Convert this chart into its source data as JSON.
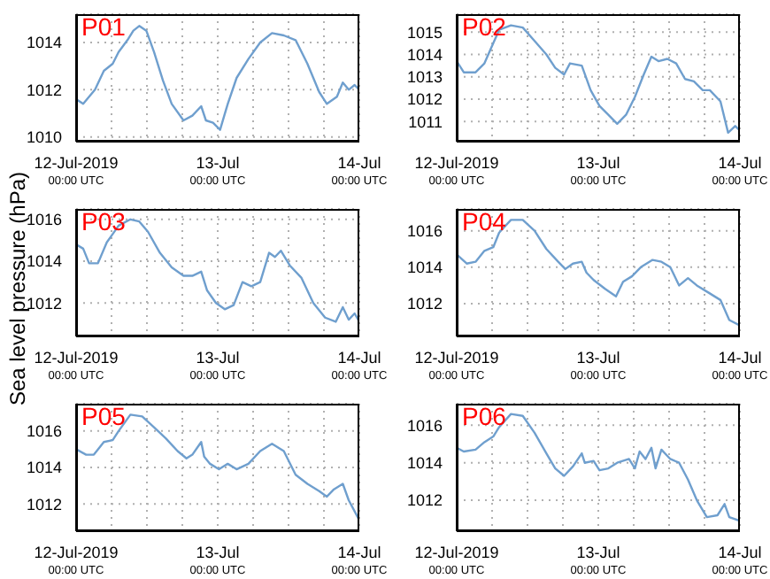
{
  "chart_data": [
    {
      "type": "line",
      "title": "P01",
      "xlim": [
        "2019-07-12",
        "2019-07-14"
      ],
      "ylim": [
        1009.8,
        1015.2
      ],
      "yticks": [
        1010,
        1012,
        1014
      ],
      "grid": true,
      "xticks": [
        {
          "value": "2019-07-12",
          "label": "12-Jul-2019\n00:00 UTC"
        },
        {
          "value": "2019-07-12T06:00",
          "label": null
        },
        {
          "value": "2019-07-12T12:00",
          "label": null
        },
        {
          "value": "2019-07-12T18:00",
          "label": null
        },
        {
          "value": "2019-07-13",
          "label": "13-Jul\n00:00 UTC"
        },
        {
          "value": "2019-07-13T06:00",
          "label": null
        },
        {
          "value": "2019-07-13T12:00",
          "label": null
        },
        {
          "value": "2019-07-13T18:00",
          "label": null
        },
        {
          "value": "2019-07-14",
          "label": "14-Jul\n00:00 UTC"
        }
      ],
      "x": [
        "2019-07-12T00:00",
        "2019-07-12T01:12",
        "2019-07-12T03:12",
        "2019-07-12T04:42",
        "2019-07-12T06:12",
        "2019-07-12T07:12",
        "2019-07-12T08:42",
        "2019-07-12T09:42",
        "2019-07-12T10:42",
        "2019-07-12T11:54",
        "2019-07-12T13:12",
        "2019-07-12T14:42",
        "2019-07-12T16:12",
        "2019-07-12T18:12",
        "2019-07-12T19:42",
        "2019-07-12T21:12",
        "2019-07-12T22:00",
        "2019-07-12T23:12",
        "2019-07-13T00:24",
        "2019-07-13T01:42",
        "2019-07-13T03:12",
        "2019-07-13T05:12",
        "2019-07-13T07:12",
        "2019-07-13T09:12",
        "2019-07-13T11:12",
        "2019-07-13T13:12",
        "2019-07-13T15:12",
        "2019-07-13T17:12",
        "2019-07-13T18:30",
        "2019-07-13T20:12",
        "2019-07-13T21:12",
        "2019-07-13T22:12",
        "2019-07-13T23:12",
        "2019-07-14T00:00"
      ],
      "series": [
        {
          "color": "#6f9fce",
          "values": [
            1011.6,
            1011.4,
            1012.0,
            1012.8,
            1013.1,
            1013.6,
            1014.1,
            1014.5,
            1014.7,
            1014.5,
            1013.6,
            1012.4,
            1011.4,
            1010.7,
            1010.9,
            1011.3,
            1010.7,
            1010.6,
            1010.3,
            1011.4,
            1012.5,
            1013.3,
            1014.0,
            1014.4,
            1014.3,
            1014.1,
            1013.1,
            1011.9,
            1011.4,
            1011.7,
            1012.3,
            1012.0,
            1012.2,
            1012.0
          ]
        }
      ]
    },
    {
      "type": "line",
      "title": "P02",
      "xlim": [
        "2019-07-12",
        "2019-07-14"
      ],
      "ylim": [
        1010.1,
        1015.8
      ],
      "yticks": [
        1011,
        1012,
        1013,
        1014,
        1015
      ],
      "grid": true,
      "xticks": [
        {
          "value": "2019-07-12",
          "label": "12-Jul-2019\n00:00 UTC"
        },
        {
          "value": "2019-07-12T06:00",
          "label": null
        },
        {
          "value": "2019-07-12T12:00",
          "label": null
        },
        {
          "value": "2019-07-12T18:00",
          "label": null
        },
        {
          "value": "2019-07-13",
          "label": "13-Jul\n00:00 UTC"
        },
        {
          "value": "2019-07-13T06:00",
          "label": null
        },
        {
          "value": "2019-07-13T12:00",
          "label": null
        },
        {
          "value": "2019-07-13T18:00",
          "label": null
        },
        {
          "value": "2019-07-14",
          "label": "14-Jul\n00:00 UTC"
        }
      ],
      "x": [
        "2019-07-12T00:00",
        "2019-07-12T01:12",
        "2019-07-12T03:12",
        "2019-07-12T04:42",
        "2019-07-12T06:12",
        "2019-07-12T07:12",
        "2019-07-12T09:12",
        "2019-07-12T11:12",
        "2019-07-12T13:12",
        "2019-07-12T15:12",
        "2019-07-12T16:42",
        "2019-07-12T18:12",
        "2019-07-12T19:12",
        "2019-07-12T21:12",
        "2019-07-12T22:42",
        "2019-07-13T00:12",
        "2019-07-13T01:42",
        "2019-07-13T03:12",
        "2019-07-13T04:42",
        "2019-07-13T06:12",
        "2019-07-13T07:42",
        "2019-07-13T09:00",
        "2019-07-13T10:12",
        "2019-07-13T11:42",
        "2019-07-13T13:12",
        "2019-07-13T14:42",
        "2019-07-13T16:12",
        "2019-07-13T17:42",
        "2019-07-13T18:54",
        "2019-07-13T20:42",
        "2019-07-13T22:00",
        "2019-07-13T23:12",
        "2019-07-14T00:00"
      ],
      "series": [
        {
          "color": "#6f9fce",
          "values": [
            1013.7,
            1013.2,
            1013.2,
            1013.6,
            1014.5,
            1015.1,
            1015.3,
            1015.2,
            1014.6,
            1014.0,
            1013.4,
            1013.1,
            1013.6,
            1013.5,
            1012.4,
            1011.7,
            1011.3,
            1010.9,
            1011.3,
            1012.1,
            1013.1,
            1013.9,
            1013.7,
            1013.8,
            1013.6,
            1012.9,
            1012.8,
            1012.4,
            1012.4,
            1011.9,
            1010.5,
            1010.8,
            1010.6
          ]
        }
      ]
    },
    {
      "type": "line",
      "title": "P03",
      "ylabel": "Sea level pressure (hPa)",
      "xlim": [
        "2019-07-12",
        "2019-07-14"
      ],
      "ylim": [
        1010.4,
        1016.5
      ],
      "yticks": [
        1012,
        1014,
        1016
      ],
      "grid": true,
      "xticks": [
        {
          "value": "2019-07-12",
          "label": "12-Jul-2019\n00:00 UTC"
        },
        {
          "value": "2019-07-12T06:00",
          "label": null
        },
        {
          "value": "2019-07-12T12:00",
          "label": null
        },
        {
          "value": "2019-07-12T18:00",
          "label": null
        },
        {
          "value": "2019-07-13",
          "label": "13-Jul\n00:00 UTC"
        },
        {
          "value": "2019-07-13T06:00",
          "label": null
        },
        {
          "value": "2019-07-13T12:00",
          "label": null
        },
        {
          "value": "2019-07-13T18:00",
          "label": null
        },
        {
          "value": "2019-07-14",
          "label": "14-Jul\n00:00 UTC"
        }
      ],
      "x": [
        "2019-07-12T00:00",
        "2019-07-12T01:12",
        "2019-07-12T02:12",
        "2019-07-12T03:42",
        "2019-07-12T05:12",
        "2019-07-12T06:12",
        "2019-07-12T07:12",
        "2019-07-12T09:12",
        "2019-07-12T10:42",
        "2019-07-12T12:12",
        "2019-07-12T14:12",
        "2019-07-12T16:12",
        "2019-07-12T18:12",
        "2019-07-12T19:42",
        "2019-07-12T21:12",
        "2019-07-12T22:12",
        "2019-07-12T23:42",
        "2019-07-13T01:12",
        "2019-07-13T02:42",
        "2019-07-13T04:12",
        "2019-07-13T05:42",
        "2019-07-13T07:12",
        "2019-07-13T08:42",
        "2019-07-13T09:42",
        "2019-07-13T10:42",
        "2019-07-13T12:12",
        "2019-07-13T14:12",
        "2019-07-13T16:12",
        "2019-07-13T18:12",
        "2019-07-13T20:00",
        "2019-07-13T21:12",
        "2019-07-13T22:12",
        "2019-07-13T23:12",
        "2019-07-14T00:00"
      ],
      "series": [
        {
          "color": "#6f9fce",
          "values": [
            1014.8,
            1014.6,
            1013.9,
            1013.9,
            1014.9,
            1015.3,
            1015.7,
            1016.0,
            1015.9,
            1015.4,
            1014.4,
            1013.7,
            1013.3,
            1013.3,
            1013.5,
            1012.6,
            1012.0,
            1011.7,
            1011.9,
            1013.0,
            1012.8,
            1013.0,
            1014.4,
            1014.2,
            1014.5,
            1013.8,
            1013.2,
            1012.0,
            1011.3,
            1011.1,
            1011.8,
            1011.2,
            1011.5,
            1011.1
          ]
        }
      ]
    },
    {
      "type": "line",
      "title": "P04",
      "xlim": [
        "2019-07-12",
        "2019-07-14"
      ],
      "ylim": [
        1010.2,
        1017.2
      ],
      "yticks": [
        1012,
        1014,
        1016
      ],
      "grid": true,
      "xticks": [
        {
          "value": "2019-07-12",
          "label": "12-Jul-2019\n00:00 UTC"
        },
        {
          "value": "2019-07-12T06:00",
          "label": null
        },
        {
          "value": "2019-07-12T12:00",
          "label": null
        },
        {
          "value": "2019-07-12T18:00",
          "label": null
        },
        {
          "value": "2019-07-13",
          "label": "13-Jul\n00:00 UTC"
        },
        {
          "value": "2019-07-13T06:00",
          "label": null
        },
        {
          "value": "2019-07-13T12:00",
          "label": null
        },
        {
          "value": "2019-07-13T18:00",
          "label": null
        },
        {
          "value": "2019-07-14",
          "label": "14-Jul\n00:00 UTC"
        }
      ],
      "x": [
        "2019-07-12T00:00",
        "2019-07-12T01:42",
        "2019-07-12T03:12",
        "2019-07-12T04:42",
        "2019-07-12T06:12",
        "2019-07-12T07:12",
        "2019-07-12T09:12",
        "2019-07-12T11:12",
        "2019-07-12T13:12",
        "2019-07-12T15:12",
        "2019-07-12T17:12",
        "2019-07-12T18:24",
        "2019-07-12T19:42",
        "2019-07-12T21:12",
        "2019-07-12T22:00",
        "2019-07-12T23:12",
        "2019-07-13T01:12",
        "2019-07-13T03:00",
        "2019-07-13T04:12",
        "2019-07-13T05:42",
        "2019-07-13T07:12",
        "2019-07-13T09:12",
        "2019-07-13T10:42",
        "2019-07-13T12:12",
        "2019-07-13T13:42",
        "2019-07-13T15:12",
        "2019-07-13T16:42",
        "2019-07-13T18:42",
        "2019-07-13T20:42",
        "2019-07-13T22:12",
        "2019-07-14T00:00"
      ],
      "series": [
        {
          "color": "#6f9fce",
          "values": [
            1014.7,
            1014.2,
            1014.3,
            1014.9,
            1015.1,
            1015.9,
            1016.6,
            1016.6,
            1016.0,
            1015.0,
            1014.3,
            1013.9,
            1014.2,
            1014.3,
            1013.7,
            1013.3,
            1012.8,
            1012.4,
            1013.2,
            1013.5,
            1014.0,
            1014.4,
            1014.3,
            1014.0,
            1013.0,
            1013.4,
            1013.0,
            1012.6,
            1012.2,
            1011.1,
            1010.8
          ]
        }
      ]
    },
    {
      "type": "line",
      "title": "P05",
      "xlim": [
        "2019-07-12",
        "2019-07-14"
      ],
      "ylim": [
        1010.5,
        1017.5
      ],
      "yticks": [
        1012,
        1014,
        1016
      ],
      "grid": true,
      "xticks": [
        {
          "value": "2019-07-12",
          "label": "12-Jul-2019\n00:00 UTC"
        },
        {
          "value": "2019-07-12T06:00",
          "label": null
        },
        {
          "value": "2019-07-12T12:00",
          "label": null
        },
        {
          "value": "2019-07-12T18:00",
          "label": null
        },
        {
          "value": "2019-07-13",
          "label": "13-Jul\n00:00 UTC"
        },
        {
          "value": "2019-07-13T06:00",
          "label": null
        },
        {
          "value": "2019-07-13T12:00",
          "label": null
        },
        {
          "value": "2019-07-13T18:00",
          "label": null
        },
        {
          "value": "2019-07-14",
          "label": "14-Jul\n00:00 UTC"
        }
      ],
      "x": [
        "2019-07-12T00:00",
        "2019-07-12T01:42",
        "2019-07-12T03:00",
        "2019-07-12T04:42",
        "2019-07-12T06:12",
        "2019-07-12T07:12",
        "2019-07-12T09:12",
        "2019-07-12T11:12",
        "2019-07-12T13:12",
        "2019-07-12T15:12",
        "2019-07-12T17:12",
        "2019-07-12T18:42",
        "2019-07-12T19:42",
        "2019-07-12T21:12",
        "2019-07-12T21:42",
        "2019-07-12T22:42",
        "2019-07-13T00:12",
        "2019-07-13T01:42",
        "2019-07-13T03:12",
        "2019-07-13T05:12",
        "2019-07-13T07:12",
        "2019-07-13T09:12",
        "2019-07-13T11:12",
        "2019-07-13T13:12",
        "2019-07-13T15:12",
        "2019-07-13T17:12",
        "2019-07-13T18:30",
        "2019-07-13T19:42",
        "2019-07-13T21:12",
        "2019-07-13T22:12",
        "2019-07-14T00:00"
      ],
      "series": [
        {
          "color": "#6f9fce",
          "values": [
            1015.0,
            1014.7,
            1014.7,
            1015.4,
            1015.5,
            1016.0,
            1016.9,
            1016.8,
            1016.2,
            1015.6,
            1014.9,
            1014.5,
            1014.7,
            1015.4,
            1014.6,
            1014.2,
            1013.9,
            1014.2,
            1013.9,
            1014.2,
            1014.9,
            1015.3,
            1014.9,
            1013.6,
            1013.1,
            1012.7,
            1012.4,
            1012.8,
            1013.1,
            1012.2,
            1011.1
          ]
        }
      ]
    },
    {
      "type": "line",
      "title": "P06",
      "xlim": [
        "2019-07-12",
        "2019-07-14"
      ],
      "ylim": [
        1010.35,
        1017.15
      ],
      "yticks": [
        1012,
        1014,
        1016
      ],
      "grid": true,
      "xticks": [
        {
          "value": "2019-07-12",
          "label": "12-Jul-2019\n00:00 UTC"
        },
        {
          "value": "2019-07-12T06:00",
          "label": null
        },
        {
          "value": "2019-07-12T12:00",
          "label": null
        },
        {
          "value": "2019-07-12T18:00",
          "label": null
        },
        {
          "value": "2019-07-13",
          "label": "13-Jul\n00:00 UTC"
        },
        {
          "value": "2019-07-13T06:00",
          "label": null
        },
        {
          "value": "2019-07-13T12:00",
          "label": null
        },
        {
          "value": "2019-07-13T18:00",
          "label": null
        },
        {
          "value": "2019-07-14",
          "label": "14-Jul\n00:00 UTC"
        }
      ],
      "x": [
        "2019-07-12T00:00",
        "2019-07-12T01:12",
        "2019-07-12T03:12",
        "2019-07-12T04:42",
        "2019-07-12T06:12",
        "2019-07-12T07:12",
        "2019-07-12T09:12",
        "2019-07-12T11:12",
        "2019-07-12T13:12",
        "2019-07-12T15:12",
        "2019-07-12T16:42",
        "2019-07-12T18:12",
        "2019-07-12T19:42",
        "2019-07-12T21:12",
        "2019-07-12T21:42",
        "2019-07-12T23:12",
        "2019-07-13T00:12",
        "2019-07-13T01:42",
        "2019-07-13T03:12",
        "2019-07-13T05:12",
        "2019-07-13T06:12",
        "2019-07-13T07:00",
        "2019-07-13T08:00",
        "2019-07-13T09:00",
        "2019-07-13T09:42",
        "2019-07-13T10:42",
        "2019-07-13T12:12",
        "2019-07-13T13:42",
        "2019-07-13T15:12",
        "2019-07-13T16:42",
        "2019-07-13T18:24",
        "2019-07-13T20:12",
        "2019-07-13T21:24",
        "2019-07-13T22:12",
        "2019-07-14T00:00"
      ],
      "series": [
        {
          "color": "#6f9fce",
          "values": [
            1014.8,
            1014.6,
            1014.7,
            1015.1,
            1015.4,
            1015.9,
            1016.6,
            1016.5,
            1015.6,
            1014.5,
            1013.7,
            1013.3,
            1013.8,
            1014.5,
            1014.0,
            1014.1,
            1013.6,
            1013.7,
            1014.0,
            1014.2,
            1013.7,
            1014.6,
            1014.2,
            1014.8,
            1013.7,
            1014.7,
            1014.2,
            1014.0,
            1013.1,
            1012.0,
            1011.1,
            1011.2,
            1011.8,
            1011.1,
            1010.9
          ]
        }
      ]
    }
  ]
}
